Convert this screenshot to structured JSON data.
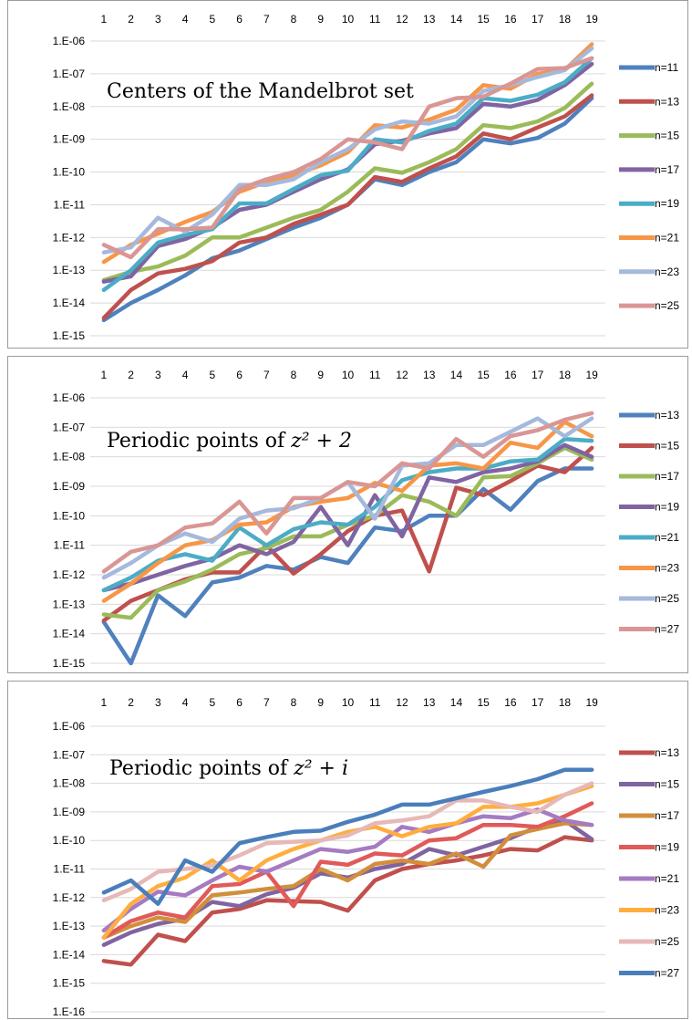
{
  "chart_data": [
    {
      "type": "line",
      "title_main": "Centers of the Mandelbrot set",
      "title_math": "",
      "x": [
        1,
        2,
        3,
        4,
        5,
        6,
        7,
        8,
        9,
        10,
        11,
        12,
        13,
        14,
        15,
        16,
        17,
        18,
        19
      ],
      "y_tick_labels": [
        "1.E-06",
        "1.E-07",
        "1.E-08",
        "1.E-09",
        "1.E-10",
        "1.E-11",
        "1.E-12",
        "1.E-13",
        "1.E-14",
        "1.E-15"
      ],
      "ylim_exp": [
        -15,
        -6
      ],
      "y_scale": "log",
      "legend_position": "right",
      "grid": true,
      "series": [
        {
          "name": "n=11",
          "color": "#4F81BD",
          "values": [
            3e-15,
            1e-14,
            2.5e-14,
            7e-14,
            2.3e-13,
            4e-13,
            9e-13,
            2e-12,
            4e-12,
            1e-11,
            6e-11,
            4e-11,
            1e-10,
            2e-10,
            1e-09,
            7.5e-10,
            1.1e-09,
            3e-09,
            1.8e-08
          ]
        },
        {
          "name": "n=13",
          "color": "#C0504D",
          "values": [
            3.5e-15,
            2.5e-14,
            8e-14,
            1.1e-13,
            1.9e-13,
            7e-13,
            1e-12,
            2.6e-12,
            5e-12,
            1e-11,
            7e-11,
            5e-11,
            1.3e-10,
            3e-10,
            1.5e-09,
            1e-09,
            2.3e-09,
            5e-09,
            2.2e-08
          ]
        },
        {
          "name": "n=15",
          "color": "#9BBB59",
          "values": [
            5e-14,
            9e-14,
            1.3e-13,
            2.8e-13,
            1e-12,
            1e-12,
            2e-12,
            4e-12,
            7e-12,
            2.5e-11,
            1.3e-10,
            9.5e-11,
            2e-10,
            5e-10,
            2.7e-09,
            2.2e-09,
            3.5e-09,
            9e-09,
            5e-08
          ]
        },
        {
          "name": "n=17",
          "color": "#8064A2",
          "values": [
            4.5e-14,
            6.5e-14,
            5.5e-13,
            9e-13,
            2e-12,
            7e-12,
            1e-11,
            2.5e-11,
            6e-11,
            1.2e-10,
            7e-10,
            9e-10,
            1.5e-09,
            2.2e-09,
            1.2e-08,
            1e-08,
            1.6e-08,
            4.5e-08,
            2e-07
          ]
        },
        {
          "name": "n=19",
          "color": "#4BACC6",
          "values": [
            2.5e-14,
            1e-13,
            7e-13,
            1.2e-12,
            1.8e-12,
            1.1e-11,
            1.1e-11,
            3e-11,
            8e-11,
            1.1e-10,
            1e-09,
            8e-10,
            1.8e-09,
            3e-09,
            1.8e-08,
            1.5e-08,
            2.3e-08,
            5.5e-08,
            3e-07
          ]
        },
        {
          "name": "n=21",
          "color": "#F79646",
          "values": [
            1.8e-13,
            6e-13,
            1.3e-12,
            3e-12,
            6e-12,
            2.5e-11,
            5e-11,
            8e-11,
            1.6e-10,
            4e-10,
            2.7e-09,
            2.3e-09,
            4e-09,
            8e-09,
            4.5e-08,
            3.5e-08,
            1e-07,
            1.3e-07,
            8e-07
          ]
        },
        {
          "name": "n=23",
          "color": "#A5B9DD",
          "values": [
            3.5e-13,
            5e-13,
            4e-12,
            1.5e-12,
            5e-12,
            4e-11,
            4e-11,
            6e-11,
            2e-10,
            5e-10,
            2e-09,
            3.5e-09,
            3e-09,
            5e-09,
            3e-08,
            4.5e-08,
            8e-08,
            1.3e-07,
            6e-07
          ]
        },
        {
          "name": "n=25",
          "color": "#D99694",
          "values": [
            6e-13,
            2.5e-13,
            1.8e-12,
            1.8e-12,
            2e-12,
            3e-11,
            6e-11,
            1e-10,
            2.5e-10,
            1e-09,
            8e-10,
            5e-10,
            1e-08,
            1.8e-08,
            2e-08,
            5e-08,
            1.4e-07,
            1.5e-07,
            3e-07
          ]
        }
      ]
    },
    {
      "type": "line",
      "title_main": "Periodic points of ",
      "title_math": "z² + 2",
      "x": [
        1,
        2,
        3,
        4,
        5,
        6,
        7,
        8,
        9,
        10,
        11,
        12,
        13,
        14,
        15,
        16,
        17,
        18,
        19
      ],
      "y_tick_labels": [
        "1.E-06",
        "1.E-07",
        "1.E-08",
        "1.E-09",
        "1.E-10",
        "1.E-11",
        "1.E-12",
        "1.E-13",
        "1.E-14",
        "1.E-15"
      ],
      "ylim_exp": [
        -15,
        -6
      ],
      "y_scale": "log",
      "legend_position": "right",
      "grid": true,
      "series": [
        {
          "name": "n=13",
          "color": "#4F81BD",
          "values": [
            2.5e-14,
            1e-15,
            2e-13,
            4e-14,
            5.5e-13,
            8e-13,
            2e-12,
            1.5e-12,
            4e-12,
            2.5e-12,
            4e-11,
            3e-11,
            1e-10,
            1e-10,
            8e-10,
            1.6e-10,
            1.5e-09,
            4e-09,
            4e-09
          ]
        },
        {
          "name": "n=15",
          "color": "#C0504D",
          "values": [
            2.8e-14,
            1.3e-13,
            3e-13,
            7e-13,
            1.2e-12,
            1.2e-12,
            1e-11,
            1.1e-12,
            5e-12,
            3e-11,
            1e-10,
            1.5e-10,
            1.3e-12,
            9e-10,
            5e-10,
            1.5e-09,
            5e-09,
            3e-09,
            2e-08
          ]
        },
        {
          "name": "n=17",
          "color": "#9BBB59",
          "values": [
            4.5e-14,
            3.5e-14,
            3e-13,
            6e-13,
            1.5e-12,
            5e-12,
            8e-12,
            2e-11,
            2e-11,
            5e-11,
            1e-10,
            5e-10,
            3e-10,
            1e-10,
            2e-09,
            2.2e-09,
            6e-09,
            2e-08,
            8e-09
          ]
        },
        {
          "name": "n=19",
          "color": "#8064A2",
          "values": [
            3e-13,
            5e-13,
            1e-12,
            2e-12,
            3.5e-12,
            1e-11,
            5e-12,
            1.3e-11,
            2e-10,
            1e-11,
            5e-10,
            2e-11,
            2e-09,
            1.4e-09,
            3e-09,
            4e-09,
            7e-09,
            2.5e-08,
            1e-08
          ]
        },
        {
          "name": "n=21",
          "color": "#4BACC6",
          "values": [
            3e-13,
            8e-13,
            3e-12,
            5e-12,
            3e-12,
            4e-11,
            1e-11,
            3.5e-11,
            6e-11,
            5e-11,
            2e-10,
            1.6e-09,
            3e-09,
            4e-09,
            4e-09,
            7e-09,
            8e-09,
            4e-08,
            3.5e-08
          ]
        },
        {
          "name": "n=23",
          "color": "#F79646",
          "values": [
            1.3e-13,
            5e-13,
            2.5e-12,
            1e-11,
            1.5e-11,
            5e-11,
            6e-11,
            2e-10,
            3e-10,
            4e-10,
            1.3e-09,
            7e-10,
            5e-09,
            6e-09,
            4e-09,
            3e-08,
            2e-08,
            1.5e-07,
            5e-08
          ]
        },
        {
          "name": "n=25",
          "color": "#A5B9DD",
          "values": [
            8e-13,
            2.5e-12,
            1e-11,
            2.5e-11,
            1.3e-11,
            8e-11,
            1.5e-10,
            1.8e-10,
            4e-10,
            1.4e-09,
            8e-11,
            5e-09,
            6e-09,
            2.5e-08,
            2.5e-08,
            7e-08,
            2e-07,
            5e-08,
            2e-07
          ]
        },
        {
          "name": "n=27",
          "color": "#D99694",
          "values": [
            1.3e-12,
            6e-12,
            1e-11,
            4e-11,
            5.5e-11,
            3e-10,
            2.5e-11,
            4e-10,
            4e-10,
            1.4e-09,
            1e-09,
            6e-09,
            4e-09,
            4e-08,
            1e-08,
            5e-08,
            8e-08,
            1.8e-07,
            3e-07
          ]
        }
      ]
    },
    {
      "type": "line",
      "title_main": "Periodic points of ",
      "title_math": "z² + i",
      "x": [
        1,
        2,
        3,
        4,
        5,
        6,
        7,
        8,
        9,
        10,
        11,
        12,
        13,
        14,
        15,
        16,
        17,
        18,
        19
      ],
      "y_tick_labels": [
        "1.E-06",
        "1.E-07",
        "1.E-08",
        "1.E-09",
        "1.E-10",
        "1.E-11",
        "1.E-12",
        "1.E-13",
        "1.E-14",
        "1.E-15",
        "1.E-16"
      ],
      "ylim_exp": [
        -16,
        -6
      ],
      "y_scale": "log",
      "legend_position": "right",
      "grid": true,
      "series": [
        {
          "name": "n=13",
          "color": "#C0504D",
          "values": [
            6e-15,
            4.5e-15,
            5e-14,
            3e-14,
            3e-13,
            4e-13,
            8e-13,
            7.5e-13,
            7e-13,
            3.5e-13,
            4e-12,
            1e-11,
            1.5e-11,
            2e-11,
            3e-11,
            5e-11,
            4.5e-11,
            1.3e-10,
            1e-10
          ]
        },
        {
          "name": "n=15",
          "color": "#8064A2",
          "values": [
            2.2e-14,
            6e-14,
            1.2e-13,
            1.8e-13,
            7e-13,
            5e-13,
            1.3e-12,
            2.2e-12,
            7e-12,
            5e-12,
            1e-11,
            1.5e-11,
            5e-11,
            3e-11,
            6e-11,
            1.2e-10,
            3e-10,
            5e-10,
            1.1e-10
          ]
        },
        {
          "name": "n=17",
          "color": "#D18F3C",
          "values": [
            4e-14,
            1e-13,
            2e-13,
            1.4e-13,
            1.2e-12,
            1.5e-12,
            2e-12,
            2.5e-12,
            1e-11,
            4e-12,
            1.5e-11,
            2e-11,
            1.5e-11,
            3.5e-11,
            1.2e-11,
            1.5e-10,
            2.5e-10,
            4e-10,
            3.5e-10
          ]
        },
        {
          "name": "n=19",
          "color": "#E05A5A",
          "values": [
            4e-14,
            1.5e-13,
            3e-13,
            2e-13,
            2.5e-12,
            3e-12,
            8e-12,
            5e-13,
            1.8e-11,
            1.4e-11,
            3.5e-11,
            3e-11,
            1e-10,
            1.2e-10,
            3.5e-10,
            3.5e-10,
            3e-10,
            7e-10,
            2e-09
          ]
        },
        {
          "name": "n=21",
          "color": "#A57BC2",
          "values": [
            7e-14,
            4e-13,
            1.6e-12,
            1.2e-12,
            4e-12,
            1.2e-11,
            8e-12,
            2e-11,
            5e-11,
            4e-11,
            6e-11,
            3e-10,
            2e-10,
            4e-10,
            7e-10,
            6e-10,
            1.2e-09,
            5e-10,
            3.5e-10
          ]
        },
        {
          "name": "n=23",
          "color": "#FFAE3E",
          "values": [
            4e-14,
            6e-13,
            2.5e-12,
            5e-12,
            2e-11,
            4e-12,
            2e-11,
            5e-11,
            1e-10,
            2e-10,
            3e-10,
            1.4e-10,
            3e-10,
            4e-10,
            1.5e-09,
            1.5e-09,
            2e-09,
            4e-09,
            8e-09
          ]
        },
        {
          "name": "n=25",
          "color": "#E6B8B7",
          "values": [
            8e-13,
            2e-12,
            8e-12,
            1e-11,
            1.3e-11,
            3e-11,
            8e-11,
            9e-11,
            1e-10,
            1.5e-10,
            4e-10,
            5e-10,
            7e-10,
            2.5e-09,
            2.5e-09,
            1.5e-09,
            1e-09,
            4e-09,
            1e-08
          ]
        },
        {
          "name": "n=27",
          "color": "#4A7EBB",
          "values": [
            1.5e-12,
            4e-12,
            6e-13,
            2e-11,
            8e-12,
            8e-11,
            1.3e-10,
            2e-10,
            2.2e-10,
            4.5e-10,
            8e-10,
            1.8e-09,
            1.8e-09,
            3e-09,
            5e-09,
            8e-09,
            1.4e-08,
            3e-08,
            3e-08
          ]
        }
      ]
    }
  ]
}
